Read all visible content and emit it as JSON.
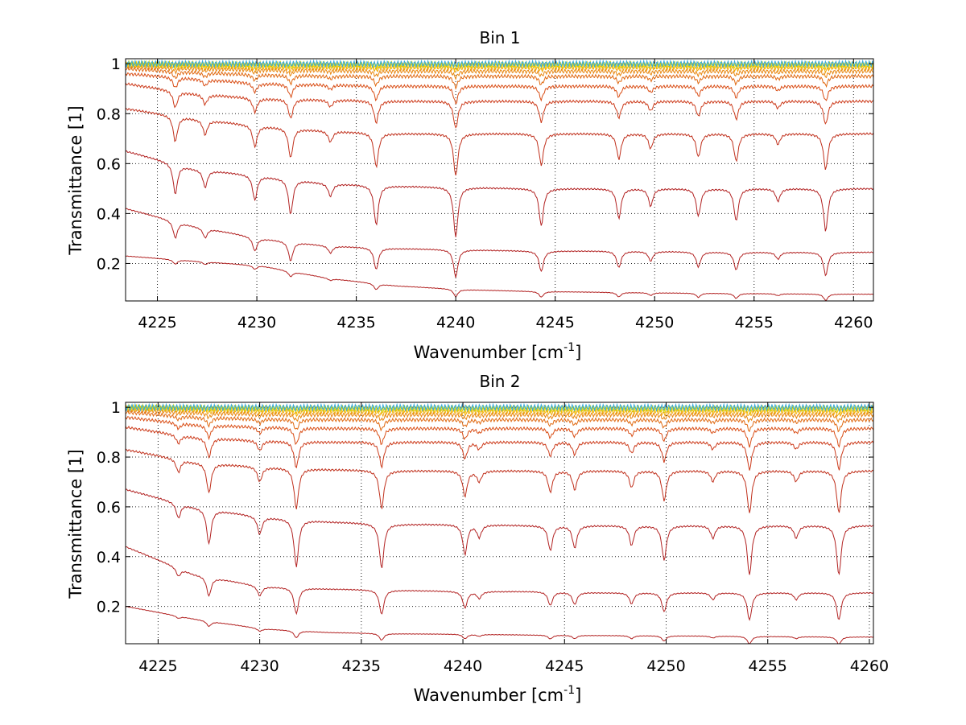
{
  "chart_data": [
    {
      "type": "line",
      "title": "Bin 1",
      "xlabel": "Wavenumber [cm",
      "xlabel_sup": "-1",
      "xlabel_end": "]",
      "ylabel": "Transmittance [1]",
      "xlim": [
        4223.4,
        4261
      ],
      "ylim": [
        0.05,
        1.02
      ],
      "xticks": [
        4225,
        4230,
        4235,
        4240,
        4245,
        4250,
        4255,
        4260
      ],
      "yticks": [
        0.2,
        0.4,
        0.6,
        0.8,
        1
      ],
      "ytick_labels": [
        "0.2",
        "0.4",
        "0.6",
        "0.8",
        "1"
      ],
      "grid": true,
      "series_baselines": [
        {
          "values": [
            0.23,
            0.21,
            0.19,
            0.14,
            0.11,
            0.095,
            0.088,
            0.085,
            0.082,
            0.08,
            0.078,
            0.077
          ],
          "depth_scale": 0.15,
          "color": "#b22222"
        },
        {
          "values": [
            0.42,
            0.35,
            0.3,
            0.27,
            0.26,
            0.255,
            0.25,
            0.25,
            0.248,
            0.245,
            0.245,
            0.245
          ],
          "depth_scale": 0.55,
          "color": "#b22222"
        },
        {
          "values": [
            0.65,
            0.58,
            0.55,
            0.52,
            0.51,
            0.505,
            0.5,
            0.5,
            0.5,
            0.5,
            0.5,
            0.5
          ],
          "depth_scale": 1.0,
          "color": "#b22222"
        },
        {
          "values": [
            0.82,
            0.78,
            0.75,
            0.73,
            0.72,
            0.72,
            0.72,
            0.72,
            0.72,
            0.72,
            0.72,
            0.72
          ],
          "depth_scale": 0.85,
          "color": "#c0301c"
        },
        {
          "values": [
            0.92,
            0.88,
            0.86,
            0.855,
            0.85,
            0.85,
            0.85,
            0.85,
            0.85,
            0.85,
            0.85,
            0.85
          ],
          "depth_scale": 0.55,
          "color": "#cc3a1a"
        },
        {
          "values": [
            0.96,
            0.94,
            0.92,
            0.915,
            0.91,
            0.91,
            0.91,
            0.91,
            0.91,
            0.91,
            0.91,
            0.91
          ],
          "depth_scale": 0.35,
          "color": "#d94e16"
        },
        {
          "values": [
            0.98,
            0.965,
            0.955,
            0.95,
            0.95,
            0.95,
            0.95,
            0.95,
            0.95,
            0.95,
            0.95,
            0.95
          ],
          "depth_scale": 0.22,
          "color": "#e06a12"
        },
        {
          "values": [
            0.99,
            0.98,
            0.975,
            0.972,
            0.97,
            0.97,
            0.97,
            0.97,
            0.97,
            0.97,
            0.97,
            0.97
          ],
          "depth_scale": 0.12,
          "color": "#e8860e"
        },
        {
          "values": [
            0.995,
            0.99,
            0.985,
            0.985,
            0.985,
            0.985,
            0.985,
            0.985,
            0.985,
            0.985,
            0.985,
            0.985
          ],
          "depth_scale": 0.07,
          "color": "#f0a80a"
        },
        {
          "values": [
            1.0,
            0.995,
            0.992,
            0.992,
            0.992,
            0.992,
            0.992,
            0.992,
            0.992,
            0.992,
            0.992,
            0.992
          ],
          "depth_scale": 0.04,
          "color": "#f5c400"
        },
        {
          "values": [
            1.0,
            0.998,
            0.997,
            0.997,
            0.997,
            0.997,
            0.997,
            0.997,
            0.997,
            0.997,
            0.997,
            0.997
          ],
          "depth_scale": 0.02,
          "color": "#c8d400"
        },
        {
          "values": [
            1.0,
            1.0,
            1.0,
            1.0,
            1.0,
            1.0,
            1.0,
            1.0,
            1.0,
            1.0,
            1.0,
            1.0
          ],
          "depth_scale": 0.01,
          "color": "#33aadd"
        }
      ],
      "lines": [
        {
          "center": 4225.9,
          "depth": 0.12
        },
        {
          "center": 4227.4,
          "depth": 0.07
        },
        {
          "center": 4229.9,
          "depth": 0.1
        },
        {
          "center": 4231.7,
          "depth": 0.14
        },
        {
          "center": 4233.7,
          "depth": 0.05
        },
        {
          "center": 4236.0,
          "depth": 0.16
        },
        {
          "center": 4240.0,
          "depth": 0.2
        },
        {
          "center": 4244.3,
          "depth": 0.15
        },
        {
          "center": 4248.2,
          "depth": 0.12
        },
        {
          "center": 4249.8,
          "depth": 0.07
        },
        {
          "center": 4252.2,
          "depth": 0.11
        },
        {
          "center": 4254.1,
          "depth": 0.13
        },
        {
          "center": 4256.2,
          "depth": 0.05
        },
        {
          "center": 4258.6,
          "depth": 0.17
        }
      ]
    },
    {
      "type": "line",
      "title": "Bin 2",
      "xlabel": "Wavenumber [cm",
      "xlabel_sup": "-1",
      "xlabel_end": "]",
      "ylabel": "Transmittance [1]",
      "xlim": [
        4223.4,
        4260.2
      ],
      "ylim": [
        0.05,
        1.02
      ],
      "xticks": [
        4225,
        4230,
        4235,
        4240,
        4245,
        4250,
        4255,
        4260
      ],
      "yticks": [
        0.2,
        0.4,
        0.6,
        0.8,
        1
      ],
      "ytick_labels": [
        "0.2",
        "0.4",
        "0.6",
        "0.8",
        "1"
      ],
      "grid": true,
      "series_baselines": [
        {
          "values": [
            0.2,
            0.15,
            0.11,
            0.095,
            0.09,
            0.088,
            0.085,
            0.083,
            0.082,
            0.08,
            0.078,
            0.077
          ],
          "depth_scale": 0.15,
          "color": "#b22222"
        },
        {
          "values": [
            0.44,
            0.33,
            0.28,
            0.27,
            0.265,
            0.26,
            0.26,
            0.255,
            0.255,
            0.255,
            0.255,
            0.255
          ],
          "depth_scale": 0.55,
          "color": "#b22222"
        },
        {
          "values": [
            0.67,
            0.6,
            0.56,
            0.54,
            0.53,
            0.53,
            0.525,
            0.525,
            0.525,
            0.525,
            0.525,
            0.525
          ],
          "depth_scale": 1.0,
          "color": "#b22222"
        },
        {
          "values": [
            0.83,
            0.78,
            0.76,
            0.75,
            0.745,
            0.745,
            0.745,
            0.745,
            0.745,
            0.745,
            0.745,
            0.745
          ],
          "depth_scale": 0.85,
          "color": "#c0301c"
        },
        {
          "values": [
            0.92,
            0.88,
            0.865,
            0.86,
            0.86,
            0.86,
            0.86,
            0.86,
            0.86,
            0.86,
            0.86,
            0.86
          ],
          "depth_scale": 0.55,
          "color": "#cc3a1a"
        },
        {
          "values": [
            0.96,
            0.93,
            0.92,
            0.915,
            0.915,
            0.915,
            0.915,
            0.915,
            0.915,
            0.915,
            0.915,
            0.915
          ],
          "depth_scale": 0.35,
          "color": "#d94e16"
        },
        {
          "values": [
            0.98,
            0.96,
            0.952,
            0.95,
            0.95,
            0.95,
            0.95,
            0.95,
            0.95,
            0.95,
            0.95,
            0.95
          ],
          "depth_scale": 0.22,
          "color": "#e06a12"
        },
        {
          "values": [
            0.99,
            0.978,
            0.972,
            0.97,
            0.97,
            0.97,
            0.97,
            0.97,
            0.97,
            0.97,
            0.97,
            0.97
          ],
          "depth_scale": 0.12,
          "color": "#e8860e"
        },
        {
          "values": [
            0.995,
            0.99,
            0.985,
            0.983,
            0.983,
            0.983,
            0.983,
            0.983,
            0.983,
            0.983,
            0.983,
            0.983
          ],
          "depth_scale": 0.07,
          "color": "#f0a80a"
        },
        {
          "values": [
            1.0,
            0.995,
            0.992,
            0.991,
            0.991,
            0.991,
            0.991,
            0.991,
            0.991,
            0.991,
            0.991,
            0.991
          ],
          "depth_scale": 0.04,
          "color": "#f5c400"
        },
        {
          "values": [
            1.0,
            0.998,
            0.997,
            0.996,
            0.996,
            0.996,
            0.996,
            0.996,
            0.996,
            0.996,
            0.996,
            0.996
          ],
          "depth_scale": 0.02,
          "color": "#c8d400"
        },
        {
          "values": [
            1.0,
            1.0,
            1.0,
            1.0,
            1.0,
            1.0,
            1.0,
            1.0,
            1.0,
            1.0,
            1.0,
            1.0
          ],
          "depth_scale": 0.01,
          "color": "#33aadd"
        }
      ],
      "lines": [
        {
          "center": 4226.0,
          "depth": 0.06
        },
        {
          "center": 4227.5,
          "depth": 0.14
        },
        {
          "center": 4230.0,
          "depth": 0.07
        },
        {
          "center": 4231.8,
          "depth": 0.19
        },
        {
          "center": 4236.0,
          "depth": 0.18
        },
        {
          "center": 4240.1,
          "depth": 0.12
        },
        {
          "center": 4240.8,
          "depth": 0.05
        },
        {
          "center": 4244.3,
          "depth": 0.1
        },
        {
          "center": 4245.5,
          "depth": 0.09
        },
        {
          "center": 4248.3,
          "depth": 0.08
        },
        {
          "center": 4249.9,
          "depth": 0.14
        },
        {
          "center": 4252.3,
          "depth": 0.05
        },
        {
          "center": 4254.1,
          "depth": 0.2
        },
        {
          "center": 4256.4,
          "depth": 0.05
        },
        {
          "center": 4258.5,
          "depth": 0.2
        }
      ]
    }
  ]
}
